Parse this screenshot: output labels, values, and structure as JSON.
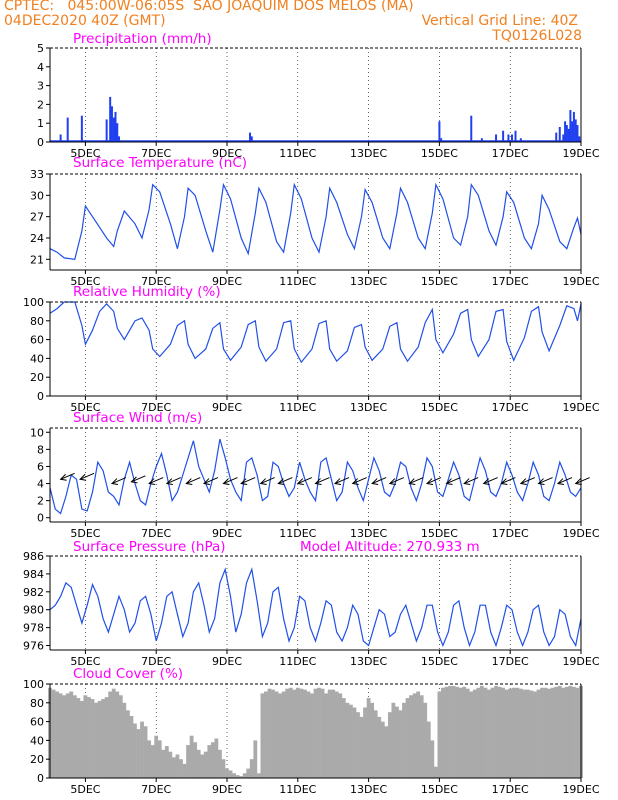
{
  "header": {
    "line1": "CPTEC:   045:00W-06:05S  SAO JOAQUIM DOS MELOS (MA)",
    "line2": "04DEC2020 40Z (GMT)",
    "grid_note": "Vertical Grid Line: 40Z",
    "code": "TQ0126L028"
  },
  "x_ticks": [
    "5DEC",
    "7DEC",
    "9DEC",
    "11DEC",
    "13DEC",
    "15DEC",
    "17DEC",
    "19DEC"
  ],
  "colors": {
    "header": "#f08020",
    "title": "#ff00ff",
    "line": "#2050e8",
    "bar": "#2040f0",
    "cloud": "#aaaaaa",
    "wind_arrow": "#000000"
  },
  "chart_data": [
    {
      "type": "bar",
      "title": "Precipitation (mm/h)",
      "ylim": [
        0,
        5
      ],
      "yticks": [
        0,
        1,
        2,
        3,
        4,
        5
      ],
      "x": [
        4.3,
        4.5,
        4.9,
        5.6,
        5.7,
        5.75,
        5.8,
        5.85,
        5.9,
        5.95,
        9.65,
        9.7,
        15.0,
        15.05,
        15.9,
        16.2,
        16.6,
        16.8,
        16.95,
        17.05,
        17.15,
        17.3,
        18.3,
        18.4,
        18.5,
        18.55,
        18.6,
        18.65,
        18.7,
        18.75,
        18.8,
        18.85,
        18.9,
        18.95
      ],
      "values": [
        0.4,
        1.3,
        1.4,
        1.2,
        2.4,
        1.9,
        1.3,
        1.6,
        1.0,
        0.3,
        0.5,
        0.3,
        1.1,
        0.2,
        1.4,
        0.2,
        0.4,
        0.6,
        0.4,
        0.4,
        0.6,
        0.2,
        0.5,
        0.8,
        0.4,
        1.1,
        0.9,
        0.7,
        1.7,
        1.1,
        1.6,
        1.2,
        0.9,
        0.3
      ]
    },
    {
      "type": "line",
      "title": "Surface Temperature (nC)",
      "ylim": [
        19.5,
        33
      ],
      "yticks": [
        21,
        24,
        27,
        30,
        33
      ],
      "x": [
        4.0,
        4.2,
        4.4,
        4.7,
        4.9,
        5.0,
        5.2,
        5.4,
        5.6,
        5.8,
        5.9,
        6.1,
        6.4,
        6.6,
        6.8,
        6.9,
        7.1,
        7.4,
        7.6,
        7.8,
        7.9,
        8.1,
        8.4,
        8.6,
        8.8,
        8.9,
        9.1,
        9.4,
        9.6,
        9.8,
        9.9,
        10.1,
        10.4,
        10.6,
        10.8,
        10.9,
        11.1,
        11.4,
        11.6,
        11.8,
        11.9,
        12.1,
        12.4,
        12.6,
        12.8,
        12.9,
        13.1,
        13.4,
        13.6,
        13.8,
        13.9,
        14.1,
        14.4,
        14.6,
        14.8,
        14.9,
        15.1,
        15.4,
        15.6,
        15.8,
        15.9,
        16.1,
        16.4,
        16.6,
        16.8,
        16.9,
        17.1,
        17.4,
        17.6,
        17.8,
        17.9,
        18.1,
        18.4,
        18.6,
        18.8,
        18.9,
        19.0
      ],
      "values": [
        22.5,
        22.0,
        21.2,
        21.0,
        25.0,
        28.5,
        27.0,
        25.5,
        24.0,
        22.8,
        25.0,
        27.8,
        26.0,
        24.0,
        28.0,
        31.5,
        30.5,
        26.0,
        22.5,
        27.0,
        31.0,
        30.0,
        25.0,
        22.0,
        28.0,
        31.5,
        29.5,
        24.0,
        21.8,
        27.5,
        31.0,
        29.0,
        23.5,
        22.0,
        27.5,
        31.5,
        29.5,
        24.0,
        22.0,
        27.0,
        31.0,
        29.0,
        24.5,
        22.5,
        27.0,
        30.8,
        29.0,
        24.0,
        22.5,
        27.5,
        31.0,
        29.0,
        24.0,
        22.5,
        27.5,
        31.5,
        29.5,
        24.0,
        23.0,
        27.0,
        31.5,
        30.0,
        25.0,
        23.0,
        27.0,
        30.5,
        29.0,
        24.0,
        22.5,
        26.0,
        30.0,
        28.0,
        23.5,
        22.5,
        25.5,
        26.8,
        24.5
      ]
    },
    {
      "type": "line",
      "title": "Relative Humidity (%)",
      "ylim": [
        0,
        100
      ],
      "yticks": [
        0,
        20,
        40,
        60,
        80,
        100
      ],
      "x": [
        4.0,
        4.2,
        4.4,
        4.7,
        4.9,
        5.0,
        5.2,
        5.4,
        5.6,
        5.8,
        5.9,
        6.1,
        6.4,
        6.6,
        6.8,
        6.9,
        7.1,
        7.4,
        7.6,
        7.8,
        7.9,
        8.1,
        8.4,
        8.6,
        8.8,
        8.9,
        9.1,
        9.4,
        9.6,
        9.8,
        9.9,
        10.1,
        10.4,
        10.6,
        10.8,
        10.9,
        11.1,
        11.4,
        11.6,
        11.8,
        11.9,
        12.1,
        12.4,
        12.6,
        12.8,
        12.9,
        13.1,
        13.4,
        13.6,
        13.8,
        13.9,
        14.1,
        14.4,
        14.6,
        14.8,
        14.9,
        15.1,
        15.4,
        15.6,
        15.8,
        15.9,
        16.1,
        16.4,
        16.6,
        16.8,
        16.9,
        17.1,
        17.4,
        17.6,
        17.8,
        17.9,
        18.1,
        18.4,
        18.6,
        18.8,
        18.9,
        19.0
      ],
      "values": [
        88,
        93,
        100,
        100,
        75,
        55,
        70,
        90,
        98,
        90,
        72,
        60,
        80,
        83,
        70,
        50,
        42,
        55,
        75,
        80,
        55,
        40,
        50,
        72,
        78,
        50,
        38,
        52,
        76,
        80,
        52,
        37,
        50,
        78,
        80,
        50,
        36,
        50,
        77,
        80,
        50,
        37,
        48,
        73,
        76,
        52,
        38,
        50,
        74,
        78,
        50,
        37,
        52,
        78,
        92,
        60,
        46,
        66,
        88,
        92,
        60,
        42,
        60,
        90,
        92,
        58,
        38,
        62,
        90,
        95,
        68,
        48,
        75,
        96,
        93,
        80,
        98
      ]
    },
    {
      "type": "line",
      "title": "Surface Wind (m/s)",
      "ylim": [
        -0.5,
        10.5
      ],
      "yticks": [
        0,
        2,
        4,
        6,
        8,
        10
      ],
      "x": [
        4.0,
        4.15,
        4.3,
        4.45,
        4.6,
        4.75,
        4.9,
        5.05,
        5.2,
        5.35,
        5.5,
        5.65,
        5.8,
        5.95,
        6.1,
        6.25,
        6.4,
        6.55,
        6.7,
        6.85,
        7.0,
        7.15,
        7.3,
        7.45,
        7.6,
        7.75,
        7.9,
        8.05,
        8.2,
        8.35,
        8.5,
        8.65,
        8.8,
        8.95,
        9.1,
        9.25,
        9.4,
        9.55,
        9.7,
        9.85,
        10.0,
        10.15,
        10.3,
        10.45,
        10.6,
        10.75,
        10.9,
        11.05,
        11.2,
        11.35,
        11.5,
        11.65,
        11.8,
        11.95,
        12.1,
        12.25,
        12.4,
        12.55,
        12.7,
        12.85,
        13.0,
        13.15,
        13.3,
        13.45,
        13.6,
        13.75,
        13.9,
        14.05,
        14.2,
        14.35,
        14.5,
        14.65,
        14.8,
        14.95,
        15.1,
        15.25,
        15.4,
        15.55,
        15.7,
        15.85,
        16.0,
        16.15,
        16.3,
        16.45,
        16.6,
        16.75,
        16.9,
        17.05,
        17.2,
        17.35,
        17.5,
        17.65,
        17.8,
        17.95,
        18.1,
        18.25,
        18.4,
        18.55,
        18.7,
        18.85,
        19.0
      ],
      "values": [
        3.5,
        1.0,
        0.5,
        2.5,
        5.0,
        4.5,
        1.0,
        0.8,
        3.0,
        6.5,
        5.5,
        3.0,
        2.5,
        1.5,
        4.5,
        6.5,
        4.0,
        2.0,
        1.5,
        4.0,
        6.0,
        7.5,
        5.0,
        2.0,
        3.0,
        5.0,
        7.0,
        9.0,
        6.0,
        4.5,
        3.0,
        5.5,
        9.2,
        7.0,
        4.5,
        3.0,
        2.0,
        6.5,
        7.0,
        5.0,
        2.0,
        2.5,
        6.5,
        6.0,
        4.0,
        2.5,
        3.5,
        6.5,
        4.5,
        3.0,
        2.0,
        6.5,
        7.0,
        4.5,
        2.0,
        3.0,
        6.5,
        5.5,
        3.5,
        2.0,
        4.5,
        7.0,
        5.5,
        3.0,
        2.5,
        4.0,
        6.5,
        6.0,
        3.5,
        2.0,
        4.0,
        7.0,
        6.0,
        3.0,
        2.5,
        4.5,
        6.5,
        5.0,
        2.5,
        2.0,
        4.5,
        7.0,
        5.5,
        3.0,
        2.5,
        4.0,
        6.5,
        5.0,
        3.0,
        2.0,
        4.0,
        6.5,
        5.0,
        2.5,
        2.0,
        4.0,
        6.5,
        5.0,
        3.0,
        2.5,
        3.5
      ],
      "wind_vectors_x": [
        4.3,
        4.85,
        5.75,
        6.3,
        6.8,
        7.3,
        7.85,
        8.35,
        8.9,
        9.4,
        9.95,
        10.45,
        11.0,
        11.5,
        12.05,
        12.55,
        13.1,
        13.6,
        14.15,
        14.65,
        15.2,
        15.7,
        16.25,
        16.75,
        17.3,
        17.8,
        18.35,
        18.85
      ],
      "wind_vectors_y": [
        4.5,
        4.5,
        4.0,
        4.2,
        4.0,
        4.0,
        4.0,
        4.0,
        4.0,
        4.0,
        4.0,
        4.0,
        4.0,
        4.0,
        4.0,
        4.0,
        4.0,
        4.0,
        4.0,
        4.0,
        4.0,
        4.0,
        4.0,
        4.0,
        4.0,
        4.0,
        4.0,
        4.0
      ]
    },
    {
      "type": "line",
      "title": "Surface Pressure (hPa)",
      "annotation": "Model Altitude: 270.933 m",
      "ylim": [
        975.5,
        986
      ],
      "yticks": [
        976,
        978,
        980,
        982,
        984,
        986
      ],
      "x": [
        4.0,
        4.15,
        4.3,
        4.45,
        4.6,
        4.75,
        4.9,
        5.05,
        5.2,
        5.35,
        5.5,
        5.65,
        5.8,
        5.95,
        6.1,
        6.25,
        6.4,
        6.55,
        6.7,
        6.85,
        7.0,
        7.15,
        7.3,
        7.45,
        7.6,
        7.75,
        7.9,
        8.05,
        8.2,
        8.35,
        8.5,
        8.65,
        8.8,
        8.95,
        9.1,
        9.25,
        9.4,
        9.55,
        9.7,
        9.85,
        10.0,
        10.15,
        10.3,
        10.45,
        10.6,
        10.75,
        10.9,
        11.05,
        11.2,
        11.35,
        11.5,
        11.65,
        11.8,
        11.95,
        12.1,
        12.25,
        12.4,
        12.55,
        12.7,
        12.85,
        13.0,
        13.15,
        13.3,
        13.45,
        13.6,
        13.75,
        13.9,
        14.05,
        14.2,
        14.35,
        14.5,
        14.65,
        14.8,
        14.95,
        15.1,
        15.25,
        15.4,
        15.55,
        15.7,
        15.85,
        16.0,
        16.15,
        16.3,
        16.45,
        16.6,
        16.75,
        16.9,
        17.05,
        17.2,
        17.35,
        17.5,
        17.65,
        17.8,
        17.95,
        18.1,
        18.25,
        18.4,
        18.55,
        18.7,
        18.85,
        19.0
      ],
      "values": [
        980.0,
        980.5,
        981.5,
        983.0,
        982.5,
        980.5,
        978.5,
        980.5,
        982.8,
        981.5,
        979.0,
        977.5,
        979.5,
        981.5,
        980.0,
        977.5,
        978.5,
        981.0,
        981.5,
        979.5,
        976.5,
        978.5,
        981.5,
        982.0,
        979.5,
        977.0,
        978.5,
        982.0,
        983.0,
        980.5,
        977.5,
        979.0,
        983.0,
        984.5,
        981.5,
        977.5,
        979.5,
        983.0,
        984.5,
        981.0,
        977.0,
        978.5,
        982.0,
        982.5,
        979.0,
        976.5,
        978.0,
        981.5,
        981.0,
        978.0,
        976.5,
        978.5,
        981.0,
        980.5,
        977.5,
        976.5,
        978.0,
        980.5,
        979.5,
        976.5,
        976.0,
        978.0,
        980.0,
        979.5,
        977.0,
        977.5,
        979.5,
        980.5,
        978.5,
        976.5,
        978.0,
        980.5,
        980.5,
        977.5,
        976.0,
        977.5,
        980.5,
        981.0,
        978.0,
        976.0,
        977.5,
        980.5,
        980.5,
        977.5,
        976.0,
        978.0,
        980.5,
        980.0,
        977.5,
        976.0,
        977.5,
        980.0,
        980.5,
        977.5,
        976.0,
        977.0,
        980.0,
        979.5,
        977.0,
        976.0,
        979.0
      ]
    },
    {
      "type": "bar",
      "title": "Cloud Cover (%)",
      "ylim": [
        0,
        100
      ],
      "yticks": [
        0,
        20,
        40,
        60,
        80,
        100
      ],
      "x": [
        4.0,
        4.1,
        4.2,
        4.3,
        4.4,
        4.5,
        4.6,
        4.7,
        4.8,
        4.9,
        5.0,
        5.1,
        5.2,
        5.3,
        5.4,
        5.5,
        5.6,
        5.7,
        5.8,
        5.9,
        6.0,
        6.1,
        6.2,
        6.3,
        6.4,
        6.5,
        6.6,
        6.7,
        6.8,
        6.9,
        7.0,
        7.1,
        7.2,
        7.3,
        7.4,
        7.5,
        7.6,
        7.7,
        7.8,
        7.9,
        8.0,
        8.1,
        8.2,
        8.3,
        8.4,
        8.5,
        8.6,
        8.7,
        8.8,
        8.9,
        9.0,
        9.1,
        9.2,
        9.3,
        9.4,
        9.5,
        9.6,
        9.7,
        9.8,
        9.9,
        10.0,
        10.1,
        10.2,
        10.3,
        10.4,
        10.5,
        10.6,
        10.7,
        10.8,
        10.9,
        11.0,
        11.1,
        11.2,
        11.3,
        11.4,
        11.5,
        11.6,
        11.7,
        11.8,
        11.9,
        12.0,
        12.1,
        12.2,
        12.3,
        12.4,
        12.5,
        12.6,
        12.7,
        12.8,
        12.9,
        13.0,
        13.1,
        13.2,
        13.3,
        13.4,
        13.5,
        13.6,
        13.7,
        13.8,
        13.9,
        14.0,
        14.1,
        14.2,
        14.3,
        14.4,
        14.5,
        14.6,
        14.7,
        14.8,
        14.9,
        15.0,
        15.1,
        15.2,
        15.3,
        15.4,
        15.5,
        15.6,
        15.7,
        15.8,
        15.9,
        16.0,
        16.1,
        16.2,
        16.3,
        16.4,
        16.5,
        16.6,
        16.7,
        16.8,
        16.9,
        17.0,
        17.1,
        17.2,
        17.3,
        17.4,
        17.5,
        17.6,
        17.7,
        17.8,
        17.9,
        18.0,
        18.1,
        18.2,
        18.3,
        18.4,
        18.5,
        18.6,
        18.7,
        18.8,
        18.9,
        19.0
      ],
      "values": [
        96,
        94,
        92,
        90,
        88,
        90,
        92,
        88,
        85,
        82,
        88,
        86,
        84,
        80,
        82,
        84,
        86,
        92,
        95,
        92,
        88,
        80,
        72,
        66,
        58,
        52,
        60,
        55,
        40,
        35,
        45,
        40,
        30,
        34,
        28,
        22,
        25,
        20,
        15,
        35,
        45,
        38,
        30,
        25,
        28,
        35,
        38,
        42,
        30,
        20,
        10,
        8,
        5,
        3,
        2,
        5,
        10,
        20,
        40,
        5,
        90,
        92,
        95,
        94,
        92,
        90,
        92,
        95,
        96,
        94,
        96,
        95,
        94,
        92,
        90,
        95,
        96,
        95,
        90,
        94,
        94,
        92,
        90,
        85,
        80,
        78,
        75,
        70,
        65,
        75,
        85,
        80,
        72,
        65,
        60,
        55,
        70,
        80,
        76,
        72,
        80,
        85,
        88,
        90,
        92,
        88,
        80,
        60,
        40,
        12,
        92,
        96,
        97,
        98,
        98,
        97,
        96,
        97,
        95,
        92,
        94,
        96,
        98,
        96,
        94,
        96,
        98,
        97,
        96,
        94,
        95,
        96,
        96,
        95,
        94,
        94,
        93,
        92,
        94,
        96,
        96,
        95,
        96,
        97,
        98,
        96,
        97,
        98,
        97,
        96,
        98
      ]
    }
  ]
}
